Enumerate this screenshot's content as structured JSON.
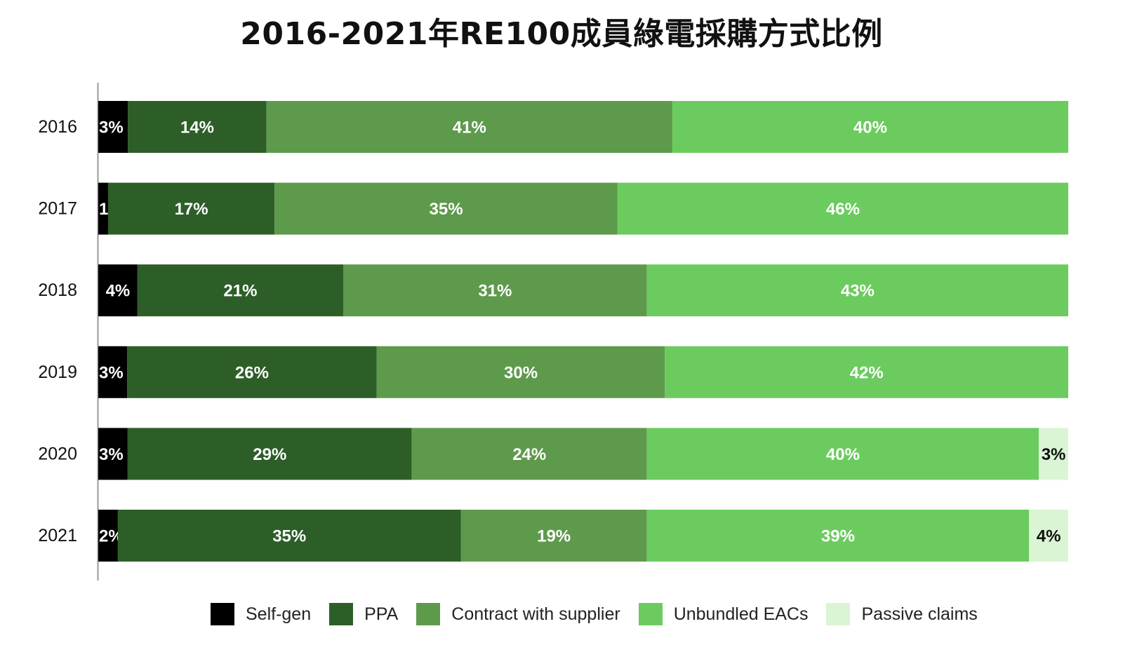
{
  "title": "2016-2021年RE100成員綠電採購方式比例",
  "chart_data": {
    "type": "bar",
    "orientation": "horizontal",
    "stacked": true,
    "title": "2016-2021年RE100成員綠電採購方式比例",
    "xlabel": "",
    "ylabel": "",
    "categories": [
      "2016",
      "2017",
      "2018",
      "2019",
      "2020",
      "2021"
    ],
    "series": [
      {
        "name": "Self-gen",
        "color": "#000000",
        "label_color": "#ffffff",
        "values": [
          3,
          1,
          4,
          3,
          3,
          2
        ]
      },
      {
        "name": "PPA",
        "color": "#2d5e28",
        "label_color": "#ffffff",
        "values": [
          14,
          17,
          21,
          26,
          29,
          35
        ]
      },
      {
        "name": "Contract with supplier",
        "color": "#5e9a4c",
        "label_color": "#ffffff",
        "values": [
          41,
          35,
          31,
          30,
          24,
          19
        ]
      },
      {
        "name": "Unbundled EACs",
        "color": "#6ccb5f",
        "label_color": "#ffffff",
        "values": [
          40,
          46,
          43,
          42,
          40,
          39
        ]
      },
      {
        "name": "Passive claims",
        "color": "#d9f5d3",
        "label_color": "#111111",
        "values": [
          0,
          0,
          0,
          0,
          3,
          4
        ]
      }
    ],
    "data_labels": true,
    "label_format": "{v}%",
    "grid": false,
    "legend_position": "bottom"
  }
}
